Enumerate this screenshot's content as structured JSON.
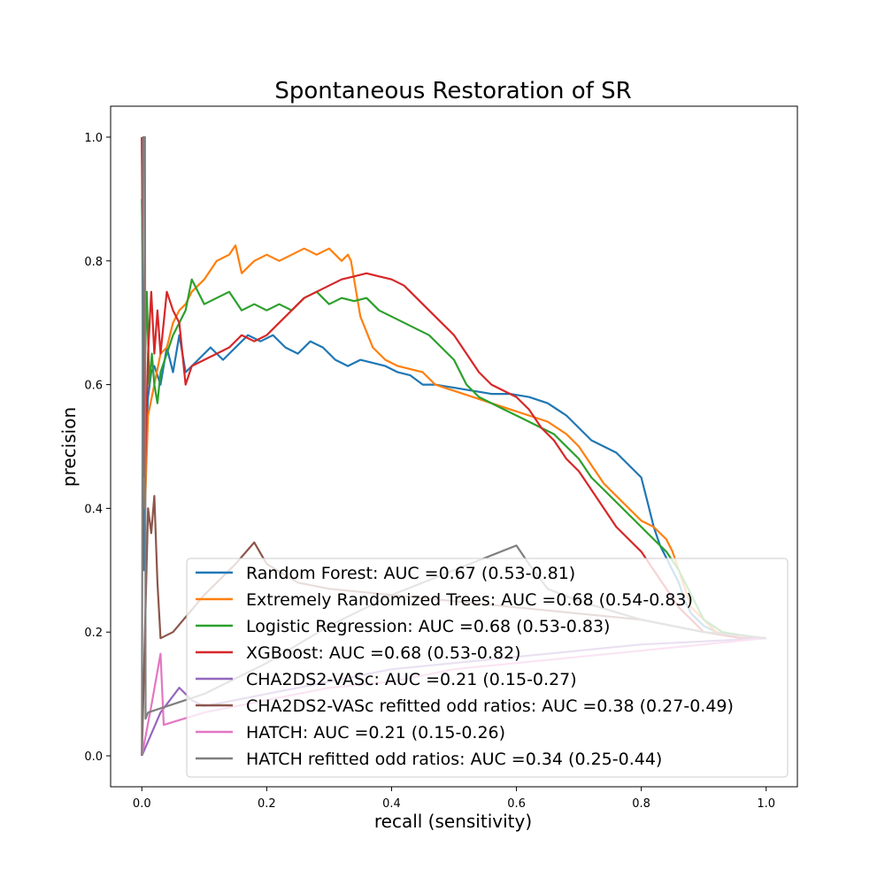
{
  "chart_data": {
    "type": "line",
    "title": "Spontaneous Restoration of SR",
    "xlabel": "recall (sensitivity)",
    "ylabel": "precision",
    "xlim": [
      -0.05,
      1.05
    ],
    "ylim": [
      -0.05,
      1.05
    ],
    "xticks": [
      0.0,
      0.2,
      0.4,
      0.6,
      0.8,
      1.0
    ],
    "xtick_labels": [
      "0.0",
      "0.2",
      "0.4",
      "0.6",
      "0.8",
      "1.0"
    ],
    "yticks": [
      0.0,
      0.2,
      0.4,
      0.6,
      0.8,
      1.0
    ],
    "ytick_labels": [
      "0.0",
      "0.2",
      "0.4",
      "0.6",
      "0.8",
      "1.0"
    ],
    "grid": false,
    "legend_position": "lower-right",
    "series": [
      {
        "name": "Random Forest: AUC =0.67 (0.53-0.81)",
        "color": "#1f77b4",
        "x": [
          0.0,
          0.003,
          0.006,
          0.01,
          0.015,
          0.02,
          0.03,
          0.04,
          0.05,
          0.06,
          0.07,
          0.09,
          0.11,
          0.13,
          0.15,
          0.17,
          0.19,
          0.21,
          0.23,
          0.25,
          0.27,
          0.29,
          0.31,
          0.33,
          0.35,
          0.37,
          0.39,
          0.41,
          0.43,
          0.45,
          0.47,
          0.5,
          0.53,
          0.56,
          0.59,
          0.62,
          0.65,
          0.68,
          0.7,
          0.72,
          0.74,
          0.76,
          0.78,
          0.8,
          0.81,
          0.82,
          0.83,
          0.84,
          0.85,
          0.86,
          0.87,
          0.88,
          0.9,
          0.92,
          0.95,
          1.0
        ],
        "y": [
          1.0,
          0.3,
          0.5,
          0.58,
          0.62,
          0.63,
          0.6,
          0.66,
          0.62,
          0.68,
          0.62,
          0.64,
          0.66,
          0.64,
          0.66,
          0.68,
          0.67,
          0.68,
          0.66,
          0.65,
          0.67,
          0.66,
          0.64,
          0.63,
          0.64,
          0.635,
          0.63,
          0.62,
          0.615,
          0.6,
          0.6,
          0.595,
          0.59,
          0.585,
          0.585,
          0.58,
          0.57,
          0.55,
          0.53,
          0.51,
          0.5,
          0.49,
          0.47,
          0.45,
          0.41,
          0.37,
          0.34,
          0.32,
          0.3,
          0.28,
          0.25,
          0.23,
          0.21,
          0.2,
          0.195,
          0.19
        ]
      },
      {
        "name": "Extremely Randomized Trees: AUC =0.68 (0.54-0.83)",
        "color": "#ff7f0e",
        "x": [
          0.0,
          0.005,
          0.01,
          0.02,
          0.03,
          0.04,
          0.05,
          0.06,
          0.07,
          0.08,
          0.1,
          0.12,
          0.14,
          0.15,
          0.16,
          0.18,
          0.2,
          0.22,
          0.24,
          0.26,
          0.28,
          0.3,
          0.32,
          0.33,
          0.335,
          0.35,
          0.37,
          0.39,
          0.41,
          0.43,
          0.45,
          0.47,
          0.5,
          0.53,
          0.56,
          0.59,
          0.62,
          0.65,
          0.68,
          0.7,
          0.72,
          0.74,
          0.76,
          0.78,
          0.8,
          0.82,
          0.84,
          0.85,
          0.86,
          0.87,
          0.88,
          0.9,
          0.92,
          0.95,
          1.0
        ],
        "y": [
          1.0,
          0.4,
          0.55,
          0.6,
          0.65,
          0.66,
          0.7,
          0.72,
          0.73,
          0.75,
          0.77,
          0.8,
          0.81,
          0.825,
          0.78,
          0.8,
          0.81,
          0.8,
          0.81,
          0.82,
          0.81,
          0.82,
          0.8,
          0.81,
          0.8,
          0.71,
          0.66,
          0.64,
          0.63,
          0.625,
          0.62,
          0.6,
          0.59,
          0.58,
          0.57,
          0.56,
          0.55,
          0.54,
          0.52,
          0.5,
          0.47,
          0.44,
          0.42,
          0.4,
          0.38,
          0.37,
          0.35,
          0.33,
          0.3,
          0.27,
          0.24,
          0.22,
          0.2,
          0.195,
          0.19
        ]
      },
      {
        "name": "Logistic Regression: AUC =0.68 (0.53-0.83)",
        "color": "#2ca02c",
        "x": [
          0.0,
          0.004,
          0.008,
          0.012,
          0.016,
          0.02,
          0.025,
          0.03,
          0.04,
          0.05,
          0.06,
          0.07,
          0.08,
          0.1,
          0.12,
          0.14,
          0.16,
          0.18,
          0.2,
          0.22,
          0.24,
          0.26,
          0.28,
          0.3,
          0.32,
          0.34,
          0.36,
          0.38,
          0.4,
          0.42,
          0.44,
          0.46,
          0.48,
          0.5,
          0.52,
          0.54,
          0.56,
          0.58,
          0.6,
          0.62,
          0.64,
          0.66,
          0.68,
          0.7,
          0.72,
          0.74,
          0.76,
          0.78,
          0.8,
          0.82,
          0.84,
          0.86,
          0.88,
          0.9,
          0.93,
          0.96,
          1.0
        ],
        "y": [
          0.9,
          0.6,
          0.75,
          0.6,
          0.65,
          0.6,
          0.57,
          0.62,
          0.65,
          0.68,
          0.7,
          0.72,
          0.77,
          0.73,
          0.74,
          0.75,
          0.72,
          0.73,
          0.72,
          0.73,
          0.72,
          0.74,
          0.75,
          0.73,
          0.74,
          0.735,
          0.74,
          0.72,
          0.71,
          0.7,
          0.69,
          0.68,
          0.66,
          0.64,
          0.6,
          0.58,
          0.57,
          0.56,
          0.55,
          0.54,
          0.53,
          0.52,
          0.5,
          0.48,
          0.45,
          0.43,
          0.41,
          0.39,
          0.37,
          0.35,
          0.33,
          0.3,
          0.26,
          0.22,
          0.2,
          0.195,
          0.19
        ]
      },
      {
        "name": "XGBoost: AUC =0.68 (0.53-0.82)",
        "color": "#d62728",
        "x": [
          0.0,
          0.005,
          0.01,
          0.015,
          0.02,
          0.025,
          0.03,
          0.04,
          0.05,
          0.06,
          0.07,
          0.08,
          0.1,
          0.12,
          0.14,
          0.16,
          0.18,
          0.2,
          0.22,
          0.24,
          0.26,
          0.28,
          0.3,
          0.32,
          0.34,
          0.36,
          0.38,
          0.4,
          0.42,
          0.44,
          0.46,
          0.48,
          0.5,
          0.52,
          0.54,
          0.56,
          0.58,
          0.6,
          0.62,
          0.64,
          0.66,
          0.68,
          0.7,
          0.72,
          0.74,
          0.76,
          0.78,
          0.8,
          0.82,
          0.84,
          0.86,
          0.88,
          0.9,
          0.93,
          0.96,
          1.0
        ],
        "y": [
          1.0,
          0.45,
          0.65,
          0.75,
          0.65,
          0.72,
          0.65,
          0.75,
          0.72,
          0.7,
          0.6,
          0.63,
          0.64,
          0.65,
          0.66,
          0.68,
          0.67,
          0.68,
          0.7,
          0.72,
          0.74,
          0.75,
          0.76,
          0.77,
          0.775,
          0.78,
          0.775,
          0.77,
          0.76,
          0.74,
          0.72,
          0.7,
          0.68,
          0.65,
          0.62,
          0.6,
          0.59,
          0.58,
          0.56,
          0.53,
          0.51,
          0.48,
          0.46,
          0.43,
          0.4,
          0.37,
          0.35,
          0.33,
          0.3,
          0.27,
          0.24,
          0.22,
          0.2,
          0.195,
          0.19,
          0.19
        ]
      },
      {
        "name": "CHA2DS2-VASc: AUC =0.21 (0.15-0.27)",
        "color": "#9467bd",
        "x": [
          0.0,
          0.03,
          0.06,
          0.08,
          0.1,
          0.2,
          0.3,
          0.4,
          0.5,
          0.6,
          0.7,
          0.8,
          0.9,
          1.0
        ],
        "y": [
          0.0,
          0.07,
          0.11,
          0.09,
          0.08,
          0.1,
          0.12,
          0.14,
          0.15,
          0.16,
          0.17,
          0.18,
          0.185,
          0.19
        ]
      },
      {
        "name": "CHA2DS2-VASc refitted odd ratios: AUC =0.38 (0.27-0.49)",
        "color": "#8c564b",
        "x": [
          0.0,
          0.01,
          0.015,
          0.02,
          0.025,
          0.03,
          0.05,
          0.1,
          0.15,
          0.18,
          0.2,
          0.25,
          0.3,
          0.4,
          0.5,
          0.6,
          0.7,
          0.8,
          0.9,
          1.0
        ],
        "y": [
          0.0,
          0.4,
          0.36,
          0.42,
          0.28,
          0.19,
          0.2,
          0.26,
          0.31,
          0.345,
          0.31,
          0.28,
          0.27,
          0.26,
          0.25,
          0.24,
          0.23,
          0.22,
          0.2,
          0.19
        ]
      },
      {
        "name": "HATCH: AUC =0.21 (0.15-0.26)",
        "color": "#e377c2",
        "x": [
          0.0,
          0.015,
          0.03,
          0.035,
          0.1,
          0.2,
          0.3,
          0.4,
          0.5,
          0.6,
          0.7,
          0.8,
          0.9,
          1.0
        ],
        "y": [
          0.0,
          0.08,
          0.165,
          0.05,
          0.07,
          0.09,
          0.11,
          0.12,
          0.14,
          0.15,
          0.16,
          0.17,
          0.18,
          0.19
        ]
      },
      {
        "name": "HATCH refitted odd ratios: AUC =0.34 (0.25-0.44)",
        "color": "#7f7f7f",
        "x": [
          0.0,
          0.002,
          0.005,
          0.006,
          0.01,
          0.1,
          0.2,
          0.3,
          0.4,
          0.5,
          0.6,
          0.62,
          0.65,
          0.7,
          0.8,
          0.9,
          1.0
        ],
        "y": [
          0.0,
          1.0,
          1.0,
          0.06,
          0.07,
          0.1,
          0.15,
          0.21,
          0.26,
          0.3,
          0.34,
          0.31,
          0.27,
          0.25,
          0.22,
          0.2,
          0.19
        ]
      }
    ]
  }
}
